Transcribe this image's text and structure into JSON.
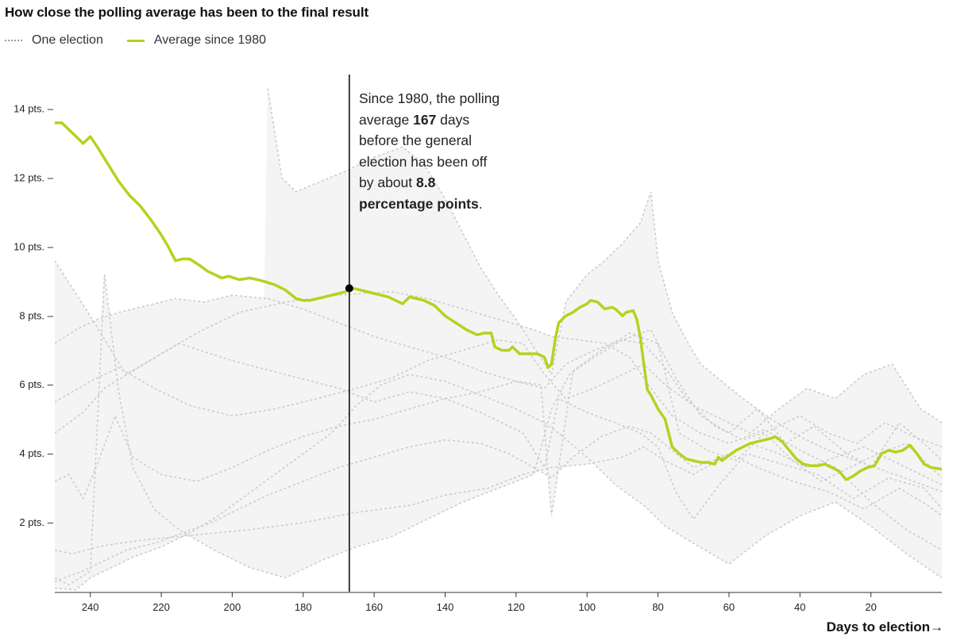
{
  "header": {
    "title": "How close the polling average has been to the final result"
  },
  "legend": {
    "one_election": "One election",
    "average": "Average since 1980"
  },
  "annotation": {
    "line1": "Since 1980, the polling",
    "line2_pre": "average ",
    "line2_bold": "167",
    "line2_post": " days",
    "line3": "before the general",
    "line4": "election has been off",
    "line5_pre": "by about ",
    "line5_bold": "8.8",
    "line6_bold": "percentage points",
    "line6_post": "."
  },
  "x_axis_title": "Days to election→",
  "colors": {
    "average": "#b6d21e",
    "elections": "#cccccc",
    "envelope": "#f4f4f4",
    "marker": "#000000"
  },
  "chart_data": {
    "type": "line",
    "title": "How close the polling average has been to the final result",
    "xlabel": "Days to election",
    "ylabel": "",
    "xlim": [
      250,
      0
    ],
    "ylim": [
      0,
      15
    ],
    "x_ticks": [
      240,
      220,
      200,
      180,
      160,
      140,
      120,
      100,
      80,
      60,
      40,
      20
    ],
    "x_tick_labels": [
      "240",
      "220",
      "200",
      "180",
      "160",
      "140",
      "120",
      "100",
      "80",
      "60",
      "40",
      "20"
    ],
    "y_ticks": [
      2,
      4,
      6,
      8,
      10,
      12,
      14
    ],
    "y_tick_labels": [
      "2 pts. –",
      "4 pts. –",
      "6 pts. –",
      "8 pts. –",
      "10 pts. –",
      "12 pts. –",
      "14 pts. –"
    ],
    "highlight": {
      "day": 167,
      "value": 8.8
    },
    "series": [
      {
        "name": "Average since 1980",
        "x": [
          250,
          248,
          245,
          242,
          240,
          238,
          235,
          232,
          229,
          226,
          223,
          221,
          220,
          218,
          216,
          214,
          212,
          209,
          207,
          205,
          203,
          201,
          198,
          195,
          193,
          191,
          188,
          185,
          182,
          180,
          178,
          176,
          174,
          172,
          170,
          168,
          167,
          165,
          162,
          160,
          158,
          156,
          154,
          152,
          150,
          148,
          146,
          143,
          140,
          137,
          134,
          131,
          129,
          127,
          126,
          124,
          122,
          121,
          119,
          118,
          116,
          114,
          112,
          111,
          110,
          109,
          108,
          106,
          104,
          102,
          100,
          99,
          97,
          95,
          93,
          92,
          90,
          89,
          87,
          86,
          85,
          84,
          83,
          82,
          81,
          80,
          78,
          76,
          74,
          72,
          70,
          68,
          66,
          64,
          63,
          62,
          60,
          58,
          56,
          54,
          52,
          50,
          48,
          47,
          45,
          43,
          41,
          39,
          37,
          35,
          33,
          31,
          29,
          27,
          25,
          23,
          21,
          19,
          17,
          15,
          13,
          11,
          9,
          7,
          5,
          3,
          0
        ],
        "values": [
          13.6,
          13.6,
          13.3,
          13.0,
          13.2,
          12.9,
          12.4,
          11.9,
          11.5,
          11.2,
          10.8,
          10.5,
          10.35,
          10.0,
          9.6,
          9.65,
          9.65,
          9.45,
          9.3,
          9.2,
          9.1,
          9.15,
          9.05,
          9.1,
          9.05,
          9.0,
          8.9,
          8.75,
          8.5,
          8.45,
          8.45,
          8.5,
          8.55,
          8.6,
          8.65,
          8.7,
          8.8,
          8.78,
          8.7,
          8.65,
          8.6,
          8.55,
          8.45,
          8.35,
          8.55,
          8.5,
          8.45,
          8.3,
          8.0,
          7.8,
          7.6,
          7.45,
          7.5,
          7.5,
          7.1,
          7.0,
          7.0,
          7.1,
          6.9,
          6.9,
          6.9,
          6.9,
          6.8,
          6.5,
          6.6,
          7.3,
          7.8,
          8.0,
          8.1,
          8.25,
          8.35,
          8.45,
          8.4,
          8.2,
          8.25,
          8.2,
          8.0,
          8.1,
          8.15,
          7.9,
          7.4,
          6.6,
          5.85,
          5.7,
          5.5,
          5.3,
          5.0,
          4.2,
          4.0,
          3.85,
          3.8,
          3.75,
          3.75,
          3.7,
          3.9,
          3.8,
          3.95,
          4.1,
          4.2,
          4.3,
          4.35,
          4.4,
          4.45,
          4.5,
          4.35,
          4.1,
          3.85,
          3.7,
          3.65,
          3.65,
          3.7,
          3.6,
          3.5,
          3.25,
          3.35,
          3.5,
          3.6,
          3.65,
          4.0,
          4.1,
          4.05,
          4.1,
          4.25,
          4.0,
          3.7,
          3.6,
          3.55
        ]
      },
      {
        "name": "One election A",
        "x": [
          250,
          240,
          230,
          215,
          200,
          185,
          170,
          160,
          150,
          140,
          130,
          118,
          112,
          108,
          100,
          92,
          85,
          80,
          75,
          70,
          62,
          55,
          45,
          35,
          25,
          15,
          5,
          0
        ],
        "values": [
          9.6,
          8.0,
          6.3,
          7.2,
          6.7,
          6.3,
          5.9,
          5.5,
          5.8,
          5.6,
          5.2,
          4.6,
          3.6,
          5.6,
          5.2,
          4.9,
          4.6,
          4.2,
          2.9,
          2.1,
          3.2,
          4.0,
          3.7,
          3.4,
          2.7,
          3.3,
          3.0,
          2.4
        ]
      },
      {
        "name": "One election B",
        "x": [
          250,
          245,
          238,
          232,
          225,
          215,
          205,
          195,
          180,
          165,
          150,
          140,
          128,
          118,
          110,
          100,
          90,
          84,
          78,
          70,
          60,
          52,
          42,
          32,
          22,
          12,
          4,
          0
        ],
        "values": [
          1.2,
          1.1,
          1.3,
          1.4,
          1.5,
          1.6,
          1.7,
          1.8,
          2.0,
          2.3,
          2.5,
          2.8,
          3.0,
          3.4,
          3.6,
          3.7,
          3.9,
          4.2,
          3.8,
          3.4,
          4.0,
          3.6,
          3.2,
          2.9,
          2.4,
          3.0,
          2.5,
          2.2
        ]
      },
      {
        "name": "One election C",
        "x": [
          250,
          242,
          236,
          228,
          220,
          210,
          198,
          185,
          170,
          155,
          145,
          135,
          125,
          115,
          110,
          102,
          95,
          88,
          82,
          76,
          68,
          60,
          50,
          40,
          30,
          20,
          10,
          0
        ],
        "values": [
          4.6,
          5.2,
          5.9,
          6.4,
          6.9,
          7.5,
          8.1,
          8.4,
          8.6,
          8.7,
          8.5,
          8.2,
          7.9,
          7.6,
          7.4,
          7.3,
          7.2,
          6.8,
          5.9,
          5.1,
          4.6,
          4.3,
          4.7,
          4.1,
          3.6,
          2.6,
          1.8,
          1.2
        ]
      },
      {
        "name": "One election D",
        "x": [
          250,
          244,
          240,
          234,
          228,
          220,
          212,
          204,
          196,
          188,
          180,
          172,
          165,
          158,
          150,
          140,
          130,
          120,
          112,
          108,
          100,
          92,
          84,
          78,
          70,
          60,
          50,
          40,
          30,
          20,
          10,
          0
        ],
        "values": [
          0.1,
          0.05,
          0.4,
          0.7,
          1.0,
          1.3,
          1.7,
          2.2,
          2.8,
          3.4,
          4.0,
          4.6,
          5.4,
          6.0,
          6.3,
          6.1,
          5.7,
          5.3,
          4.9,
          4.6,
          3.9,
          3.1,
          2.5,
          1.9,
          1.4,
          0.8,
          1.6,
          2.2,
          2.6,
          1.9,
          1.1,
          0.4
        ]
      },
      {
        "name": "One election E",
        "x": [
          250,
          240,
          232,
          222,
          212,
          200,
          188,
          176,
          165,
          155,
          145,
          135,
          125,
          118,
          112,
          106,
          98,
          90,
          84,
          78,
          70,
          62,
          54,
          46,
          38,
          30,
          22,
          14,
          6,
          0
        ],
        "values": [
          5.5,
          6.1,
          6.5,
          5.9,
          5.4,
          5.1,
          5.3,
          5.6,
          5.9,
          6.2,
          6.7,
          7.0,
          7.3,
          7.2,
          6.3,
          5.6,
          5.9,
          6.3,
          6.6,
          6.0,
          5.4,
          5.0,
          4.6,
          5.3,
          5.9,
          5.6,
          6.3,
          6.6,
          5.3,
          4.9
        ]
      },
      {
        "name": "One election F",
        "x": [
          250,
          242,
          236,
          230,
          222,
          214,
          206,
          198,
          190,
          180,
          170,
          160,
          150,
          140,
          130,
          122,
          115,
          110,
          104,
          96,
          88,
          82,
          76,
          70,
          62,
          54,
          46,
          38,
          30,
          22,
          14,
          6,
          0
        ],
        "values": [
          0.3,
          0.6,
          0.9,
          1.2,
          1.4,
          1.7,
          2.0,
          2.4,
          2.8,
          3.2,
          3.6,
          3.9,
          4.2,
          4.4,
          4.3,
          4.0,
          3.6,
          3.3,
          3.9,
          4.5,
          4.8,
          4.6,
          4.1,
          3.6,
          3.9,
          4.3,
          4.0,
          3.6,
          3.9,
          4.2,
          3.8,
          3.4,
          3.1
        ]
      },
      {
        "name": "One election G",
        "x": [
          250,
          244,
          238,
          232,
          224,
          216,
          208,
          200,
          190,
          180,
          170,
          160,
          150,
          140,
          130,
          120,
          112,
          106,
          98,
          90,
          84,
          78,
          72,
          64,
          56,
          48,
          40,
          32,
          24,
          16,
          8,
          0
        ],
        "values": [
          7.2,
          7.6,
          7.9,
          8.1,
          8.3,
          8.5,
          8.4,
          8.6,
          8.5,
          8.2,
          7.8,
          7.4,
          7.1,
          6.8,
          6.4,
          6.1,
          5.9,
          6.6,
          7.0,
          7.3,
          7.2,
          6.5,
          5.6,
          4.8,
          4.4,
          4.7,
          5.1,
          4.6,
          4.3,
          4.9,
          4.5,
          4.2
        ]
      },
      {
        "name": "One election H",
        "x": [
          250,
          246,
          242,
          238,
          233,
          228,
          220,
          210,
          200,
          190,
          180,
          170,
          160,
          150,
          140,
          130,
          120,
          113,
          110,
          104,
          96,
          88,
          80,
          74,
          66,
          58,
          50,
          42,
          34,
          26,
          18,
          10,
          0
        ],
        "values": [
          3.2,
          3.4,
          2.7,
          3.7,
          5.1,
          3.9,
          3.4,
          3.2,
          3.6,
          4.1,
          4.5,
          4.8,
          5.0,
          5.3,
          5.6,
          5.8,
          6.1,
          6.0,
          2.2,
          6.4,
          7.0,
          7.5,
          7.2,
          4.6,
          4.1,
          3.8,
          4.6,
          3.8,
          3.2,
          3.6,
          4.0,
          4.3,
          3.3
        ]
      },
      {
        "name": "One election I",
        "x": [
          250,
          246,
          240,
          236,
          232,
          228,
          222,
          215,
          205,
          195,
          185,
          175,
          165,
          155,
          145,
          135,
          125,
          115,
          110,
          105,
          98,
          90,
          82,
          75,
          68,
          60,
          52,
          44,
          36,
          28,
          20,
          12,
          4,
          0
        ],
        "values": [
          0.4,
          0.2,
          0.6,
          9.2,
          5.8,
          3.6,
          2.4,
          1.8,
          1.2,
          0.7,
          0.4,
          0.9,
          1.3,
          1.6,
          2.1,
          2.6,
          3.0,
          3.4,
          5.3,
          6.3,
          6.8,
          7.3,
          7.6,
          6.2,
          5.1,
          4.6,
          5.3,
          4.3,
          4.8,
          4.1,
          3.6,
          4.9,
          4.2,
          3.8
        ]
      },
      {
        "name": "One election J",
        "x": [
          190,
          186,
          182,
          175,
          168,
          160,
          152,
          146,
          140,
          135,
          130,
          125,
          120,
          115,
          110,
          106,
          100,
          95,
          90,
          85,
          82,
          80,
          76,
          72,
          68,
          62,
          56,
          48,
          40,
          32,
          24,
          16,
          8,
          0
        ],
        "values": [
          14.6,
          12.0,
          11.6,
          11.9,
          12.2,
          12.6,
          12.9,
          12.4,
          11.4,
          10.4,
          9.4,
          8.6,
          7.9,
          7.1,
          6.3,
          8.4,
          9.2,
          9.6,
          10.1,
          10.7,
          11.6,
          9.6,
          8.1,
          7.3,
          6.6,
          6.1,
          5.6,
          5.0,
          4.5,
          4.1,
          3.8,
          3.5,
          3.2,
          2.9
        ]
      }
    ]
  }
}
